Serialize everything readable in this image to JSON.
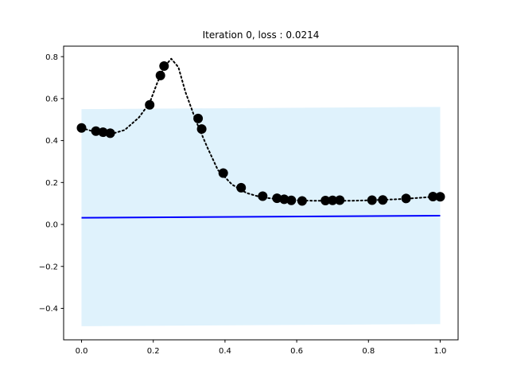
{
  "chart_data": {
    "type": "line",
    "title": "Iteration 0, loss : 0.0214",
    "xlabel": "",
    "ylabel": "",
    "xlim": [
      -0.05,
      1.05
    ],
    "ylim": [
      -0.55,
      0.85
    ],
    "xticks": [
      0.0,
      0.2,
      0.4,
      0.6,
      0.8,
      1.0
    ],
    "xtick_labels": [
      "0.0",
      "0.2",
      "0.4",
      "0.6",
      "0.8",
      "1.0"
    ],
    "yticks": [
      -0.4,
      -0.2,
      0.0,
      0.2,
      0.4,
      0.6,
      0.8
    ],
    "ytick_labels": [
      "−0.4",
      "−0.2",
      "0.0",
      "0.2",
      "0.4",
      "0.6",
      "0.8"
    ],
    "grid": false,
    "colors": {
      "band": "#dff2fc",
      "mean_line": "#0000ff",
      "true_curve": "#000000",
      "points": "#000000"
    },
    "band": {
      "x": [
        0.0,
        1.0
      ],
      "lower": [
        -0.485,
        -0.475
      ],
      "upper": [
        0.55,
        0.56
      ]
    },
    "mean_line": {
      "x": [
        0.0,
        1.0
      ],
      "y": [
        0.032,
        0.042
      ]
    },
    "true_curve": {
      "x": [
        0.0,
        0.04,
        0.08,
        0.12,
        0.16,
        0.19,
        0.21,
        0.23,
        0.25,
        0.27,
        0.29,
        0.32,
        0.35,
        0.38,
        0.42,
        0.46,
        0.5,
        0.55,
        0.6,
        0.65,
        0.7,
        0.75,
        0.8,
        0.85,
        0.9,
        0.95,
        1.0
      ],
      "y": [
        0.46,
        0.44,
        0.43,
        0.45,
        0.51,
        0.58,
        0.67,
        0.75,
        0.79,
        0.75,
        0.63,
        0.49,
        0.37,
        0.26,
        0.19,
        0.15,
        0.13,
        0.12,
        0.115,
        0.113,
        0.113,
        0.113,
        0.115,
        0.118,
        0.122,
        0.128,
        0.135
      ]
    },
    "points": {
      "x": [
        0.0,
        0.04,
        0.06,
        0.08,
        0.19,
        0.22,
        0.23,
        0.325,
        0.335,
        0.395,
        0.445,
        0.505,
        0.545,
        0.565,
        0.585,
        0.615,
        0.68,
        0.7,
        0.72,
        0.81,
        0.84,
        0.905,
        0.98,
        1.0
      ],
      "y": [
        0.46,
        0.445,
        0.44,
        0.435,
        0.57,
        0.71,
        0.755,
        0.505,
        0.455,
        0.245,
        0.175,
        0.135,
        0.125,
        0.12,
        0.115,
        0.112,
        0.114,
        0.115,
        0.116,
        0.116,
        0.117,
        0.124,
        0.133,
        0.132
      ]
    }
  }
}
